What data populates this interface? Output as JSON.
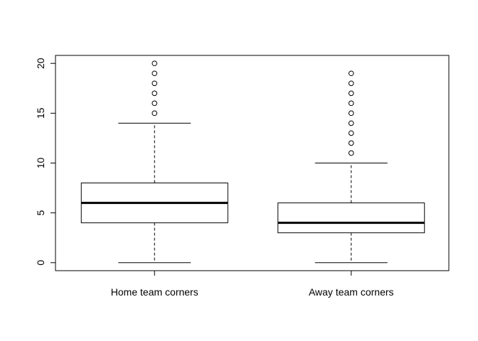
{
  "chart_data": {
    "type": "box",
    "title": "",
    "xlabel": "",
    "ylabel": "",
    "ylim": [
      -0.8,
      20.8
    ],
    "yticks": [
      "0",
      "5",
      "10",
      "15",
      "20"
    ],
    "categories": [
      "Home team corners",
      "Away team corners"
    ],
    "series": [
      {
        "category": "Home team corners",
        "whisker_low": 0,
        "q1": 4,
        "median": 6,
        "q3": 8,
        "whisker_high": 14,
        "outliers": [
          15,
          16,
          17,
          18,
          19,
          20
        ]
      },
      {
        "category": "Away team corners",
        "whisker_low": 0,
        "q1": 3,
        "median": 4,
        "q3": 6,
        "whisker_high": 10,
        "outliers": [
          11,
          12,
          13,
          14,
          15,
          16,
          17,
          18,
          19
        ]
      }
    ],
    "grid": false,
    "legend": "none"
  }
}
